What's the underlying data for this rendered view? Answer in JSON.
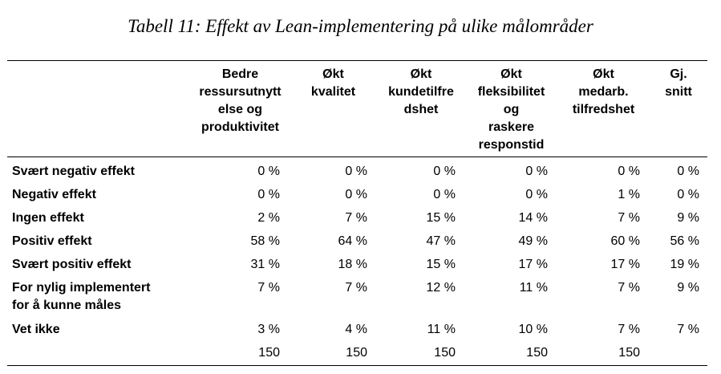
{
  "caption": "Tabell 11: Effekt av Lean-implementering på ulike målområder",
  "table": {
    "headers": [
      "",
      "Bedre ressursutnytt else og produktivitet",
      "Økt kvalitet",
      "Økt kundetilfre dshet",
      "Økt fleksibilitet og raskere responstid",
      "Økt medarb. tilfredshet",
      "Gj. snitt"
    ],
    "header_lines": [
      [],
      [
        "Bedre",
        "ressursutnytt",
        "else og",
        "produktivitet"
      ],
      [
        "Økt",
        "kvalitet"
      ],
      [
        "Økt",
        "kundetilfre",
        "dshet"
      ],
      [
        "Økt",
        "fleksibilitet",
        "og",
        "raskere",
        "responstid"
      ],
      [
        "Økt",
        "medarb.",
        "tilfredshet"
      ],
      [
        "Gj.",
        "snitt"
      ]
    ],
    "rows": [
      {
        "label": "Svært negativ effekt",
        "values": [
          "0 %",
          "0 %",
          "0 %",
          "0 %",
          "0 %",
          "0 %"
        ]
      },
      {
        "label": "Negativ effekt",
        "values": [
          "0 %",
          "0 %",
          "0 %",
          "0 %",
          "1 %",
          "0 %"
        ]
      },
      {
        "label": "Ingen effekt",
        "values": [
          "2 %",
          "7 %",
          "15 %",
          "14 %",
          "7 %",
          "9 %"
        ]
      },
      {
        "label": "Positiv effekt",
        "values": [
          "58 %",
          "64 %",
          "47 %",
          "49 %",
          "60 %",
          "56 %"
        ]
      },
      {
        "label": "Svært positiv effekt",
        "values": [
          "31 %",
          "18 %",
          "15 %",
          "17 %",
          "17 %",
          "19 %"
        ]
      },
      {
        "label": "For nylig implementert for å kunne måles",
        "label_lines": [
          "For nylig implementert",
          "for å kunne måles"
        ],
        "values": [
          "7 %",
          "7 %",
          "12 %",
          "11 %",
          "7 %",
          "9 %"
        ]
      },
      {
        "label": "Vet ikke",
        "values": [
          "3 %",
          "4 %",
          "11 %",
          "10 %",
          "7 %",
          "7 %"
        ]
      },
      {
        "label": "",
        "values": [
          "150",
          "150",
          "150",
          "150",
          "150",
          ""
        ]
      }
    ]
  }
}
